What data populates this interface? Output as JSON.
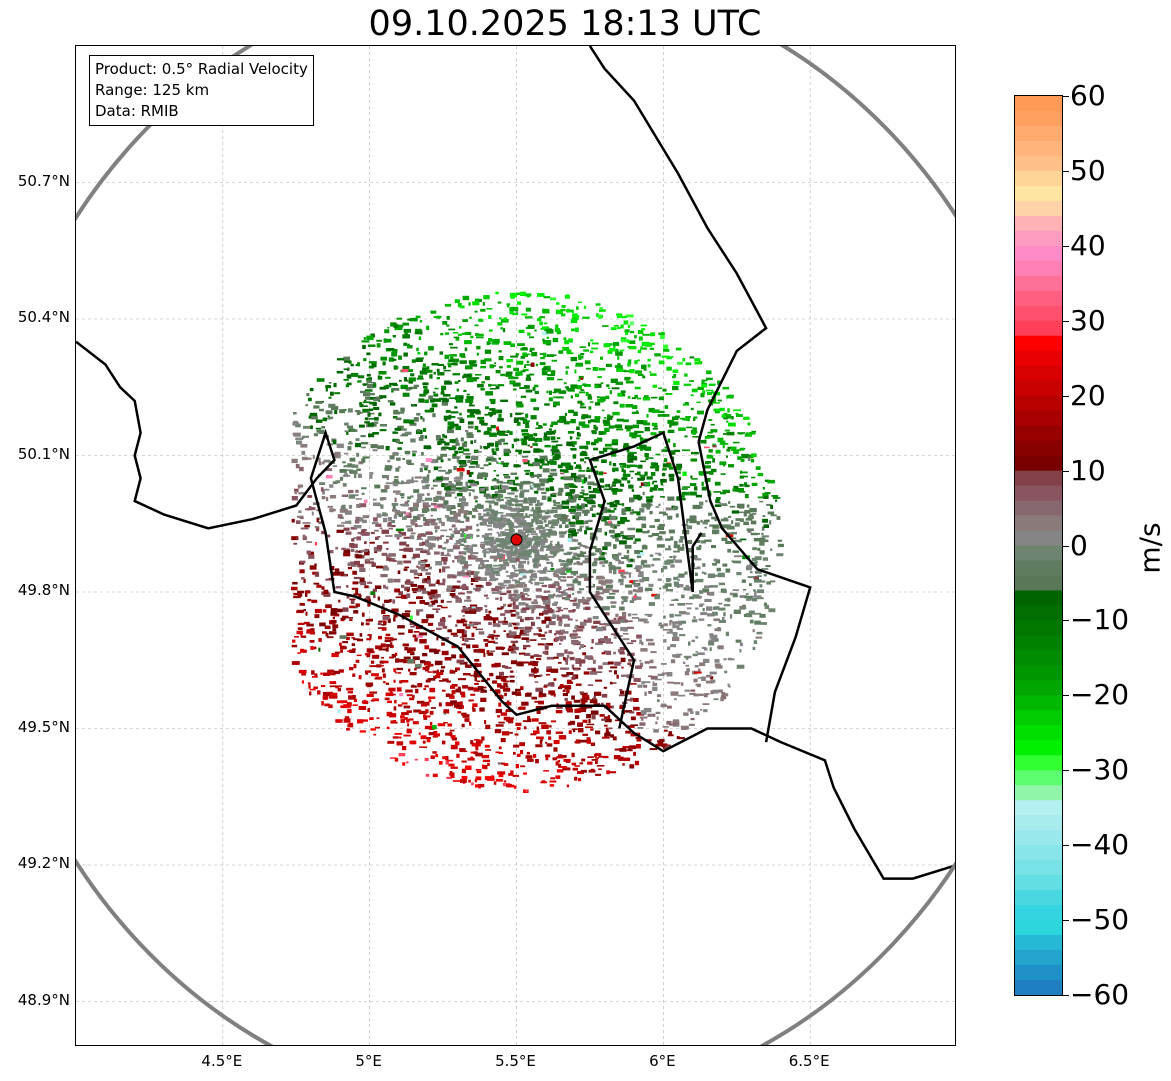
{
  "title": "09.10.2025 18:13 UTC",
  "info_box": {
    "product": "Product: 0.5° Radial Velocity",
    "range": "Range: 125 km",
    "source": "Data: RMIB"
  },
  "map": {
    "lon_range": [
      4.0,
      7.0
    ],
    "lat_range": [
      48.8,
      51.0
    ],
    "radar_site": {
      "lon": 5.5,
      "lat": 49.915
    },
    "range_km": 125,
    "lat_ticks": [
      "50.7°N",
      "50.4°N",
      "50.1°N",
      "49.8°N",
      "49.5°N",
      "49.2°N",
      "48.9°N"
    ],
    "lat_tick_values": [
      50.7,
      50.4,
      50.1,
      49.8,
      49.5,
      49.2,
      48.9
    ],
    "lon_ticks": [
      "4.5°E",
      "5°E",
      "5.5°E",
      "6°E",
      "6.5°E"
    ],
    "lon_tick_values": [
      4.5,
      5.0,
      5.5,
      6.0,
      6.5
    ],
    "grid": true,
    "colors": {
      "border": "#000000",
      "range_ring": "#808080",
      "site_marker": "#e00000"
    }
  },
  "colorbar": {
    "unit": "m/s",
    "min": -60,
    "max": 60,
    "ticks": [
      "60",
      "50",
      "40",
      "30",
      "20",
      "10",
      "0",
      "−10",
      "−20",
      "−30",
      "−40",
      "−50",
      "−60"
    ],
    "tick_values": [
      60,
      50,
      40,
      30,
      20,
      10,
      0,
      -10,
      -20,
      -30,
      -40,
      -50,
      -60
    ],
    "bands": [
      {
        "from": 58,
        "to": 60,
        "color": "#ff9955"
      },
      {
        "from": 56,
        "to": 58,
        "color": "#ffa060"
      },
      {
        "from": 54,
        "to": 56,
        "color": "#ffaa6e"
      },
      {
        "from": 52,
        "to": 54,
        "color": "#ffb57c"
      },
      {
        "from": 50,
        "to": 52,
        "color": "#ffc088"
      },
      {
        "from": 48,
        "to": 50,
        "color": "#ffd595"
      },
      {
        "from": 46,
        "to": 48,
        "color": "#ffe59f"
      },
      {
        "from": 44,
        "to": 46,
        "color": "#ffd3a8"
      },
      {
        "from": 42,
        "to": 44,
        "color": "#ffb3b5"
      },
      {
        "from": 40,
        "to": 42,
        "color": "#ff9cc0"
      },
      {
        "from": 38,
        "to": 40,
        "color": "#ff8ac8"
      },
      {
        "from": 36,
        "to": 38,
        "color": "#ff80b5"
      },
      {
        "from": 34,
        "to": 36,
        "color": "#ff7098"
      },
      {
        "from": 32,
        "to": 34,
        "color": "#ff5f80"
      },
      {
        "from": 30,
        "to": 32,
        "color": "#ff5070"
      },
      {
        "from": 28,
        "to": 30,
        "color": "#ff4058"
      },
      {
        "from": 26,
        "to": 28,
        "color": "#ff0000"
      },
      {
        "from": 24,
        "to": 26,
        "color": "#e80000"
      },
      {
        "from": 22,
        "to": 24,
        "color": "#d80000"
      },
      {
        "from": 20,
        "to": 22,
        "color": "#c80000"
      },
      {
        "from": 18,
        "to": 20,
        "color": "#b80000"
      },
      {
        "from": 16,
        "to": 18,
        "color": "#a80000"
      },
      {
        "from": 14,
        "to": 16,
        "color": "#980000"
      },
      {
        "from": 12,
        "to": 14,
        "color": "#880000"
      },
      {
        "from": 10,
        "to": 12,
        "color": "#780000"
      },
      {
        "from": 8,
        "to": 10,
        "color": "#844048"
      },
      {
        "from": 6,
        "to": 8,
        "color": "#8a5560"
      },
      {
        "from": 4,
        "to": 6,
        "color": "#88686f"
      },
      {
        "from": 2,
        "to": 4,
        "color": "#8a7a7a"
      },
      {
        "from": 0,
        "to": 2,
        "color": "#858585"
      },
      {
        "from": -2,
        "to": 0,
        "color": "#6e8470"
      },
      {
        "from": -4,
        "to": -2,
        "color": "#607c60"
      },
      {
        "from": -6,
        "to": -4,
        "color": "#587858"
      },
      {
        "from": -8,
        "to": -6,
        "color": "#006400"
      },
      {
        "from": -10,
        "to": -8,
        "color": "#006e00"
      },
      {
        "from": -12,
        "to": -10,
        "color": "#007800"
      },
      {
        "from": -14,
        "to": -12,
        "color": "#008200"
      },
      {
        "from": -16,
        "to": -14,
        "color": "#008c00"
      },
      {
        "from": -18,
        "to": -16,
        "color": "#009600"
      },
      {
        "from": -20,
        "to": -18,
        "color": "#00a600"
      },
      {
        "from": -22,
        "to": -20,
        "color": "#00b800"
      },
      {
        "from": -24,
        "to": -22,
        "color": "#00cc00"
      },
      {
        "from": -26,
        "to": -24,
        "color": "#00e000"
      },
      {
        "from": -28,
        "to": -26,
        "color": "#00f000"
      },
      {
        "from": -30,
        "to": -28,
        "color": "#30ff30"
      },
      {
        "from": -32,
        "to": -30,
        "color": "#5cff70"
      },
      {
        "from": -34,
        "to": -32,
        "color": "#90f5a8"
      },
      {
        "from": -36,
        "to": -34,
        "color": "#b4f0f0"
      },
      {
        "from": -38,
        "to": -36,
        "color": "#a8ecee"
      },
      {
        "from": -40,
        "to": -38,
        "color": "#98e8ec"
      },
      {
        "from": -42,
        "to": -40,
        "color": "#88e6ea"
      },
      {
        "from": -44,
        "to": -42,
        "color": "#78e2e6"
      },
      {
        "from": -46,
        "to": -44,
        "color": "#62dee4"
      },
      {
        "from": -48,
        "to": -46,
        "color": "#4ad8e0"
      },
      {
        "from": -50,
        "to": -48,
        "color": "#34d4e0"
      },
      {
        "from": -52,
        "to": -50,
        "color": "#2cd6dc"
      },
      {
        "from": -54,
        "to": -52,
        "color": "#26b8d4"
      },
      {
        "from": -56,
        "to": -54,
        "color": "#22a4cc"
      },
      {
        "from": -58,
        "to": -56,
        "color": "#2090c8"
      },
      {
        "from": -60,
        "to": -58,
        "color": "#1f7fc0"
      }
    ]
  }
}
